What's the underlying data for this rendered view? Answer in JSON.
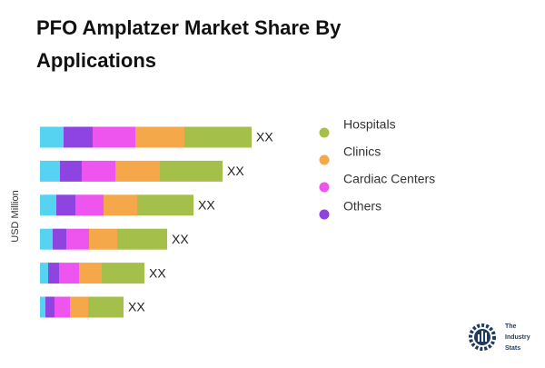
{
  "chart_data": {
    "type": "stacked-bar-horizontal",
    "title": "PFO Amplatzer Market Share By Applications",
    "y_axis_label": "USD Million",
    "categories": [
      null,
      null,
      null,
      null,
      null,
      null
    ],
    "series": [
      {
        "name": null,
        "color": "#55d3f0",
        "values": [
          26,
          22,
          18,
          14,
          9,
          6
        ]
      },
      {
        "name": "Others",
        "color": "#8e44e0",
        "values": [
          32,
          24,
          21,
          15,
          12,
          10
        ]
      },
      {
        "name": "Cardiac Centers",
        "color": "#ee55ee",
        "values": [
          47,
          37,
          31,
          25,
          22,
          17
        ]
      },
      {
        "name": "Clinics",
        "color": "#f5a84a",
        "values": [
          54,
          49,
          37,
          31,
          25,
          20
        ]
      },
      {
        "name": "Hospitals",
        "color": "#a5c04a",
        "values": [
          74,
          69,
          62,
          55,
          47,
          39
        ]
      }
    ],
    "value_labels": [
      "XX",
      "XX",
      "XX",
      "XX",
      "XX",
      "XX"
    ],
    "legend": "right"
  },
  "logo_text": [
    "The",
    "Industry",
    "Stats"
  ]
}
